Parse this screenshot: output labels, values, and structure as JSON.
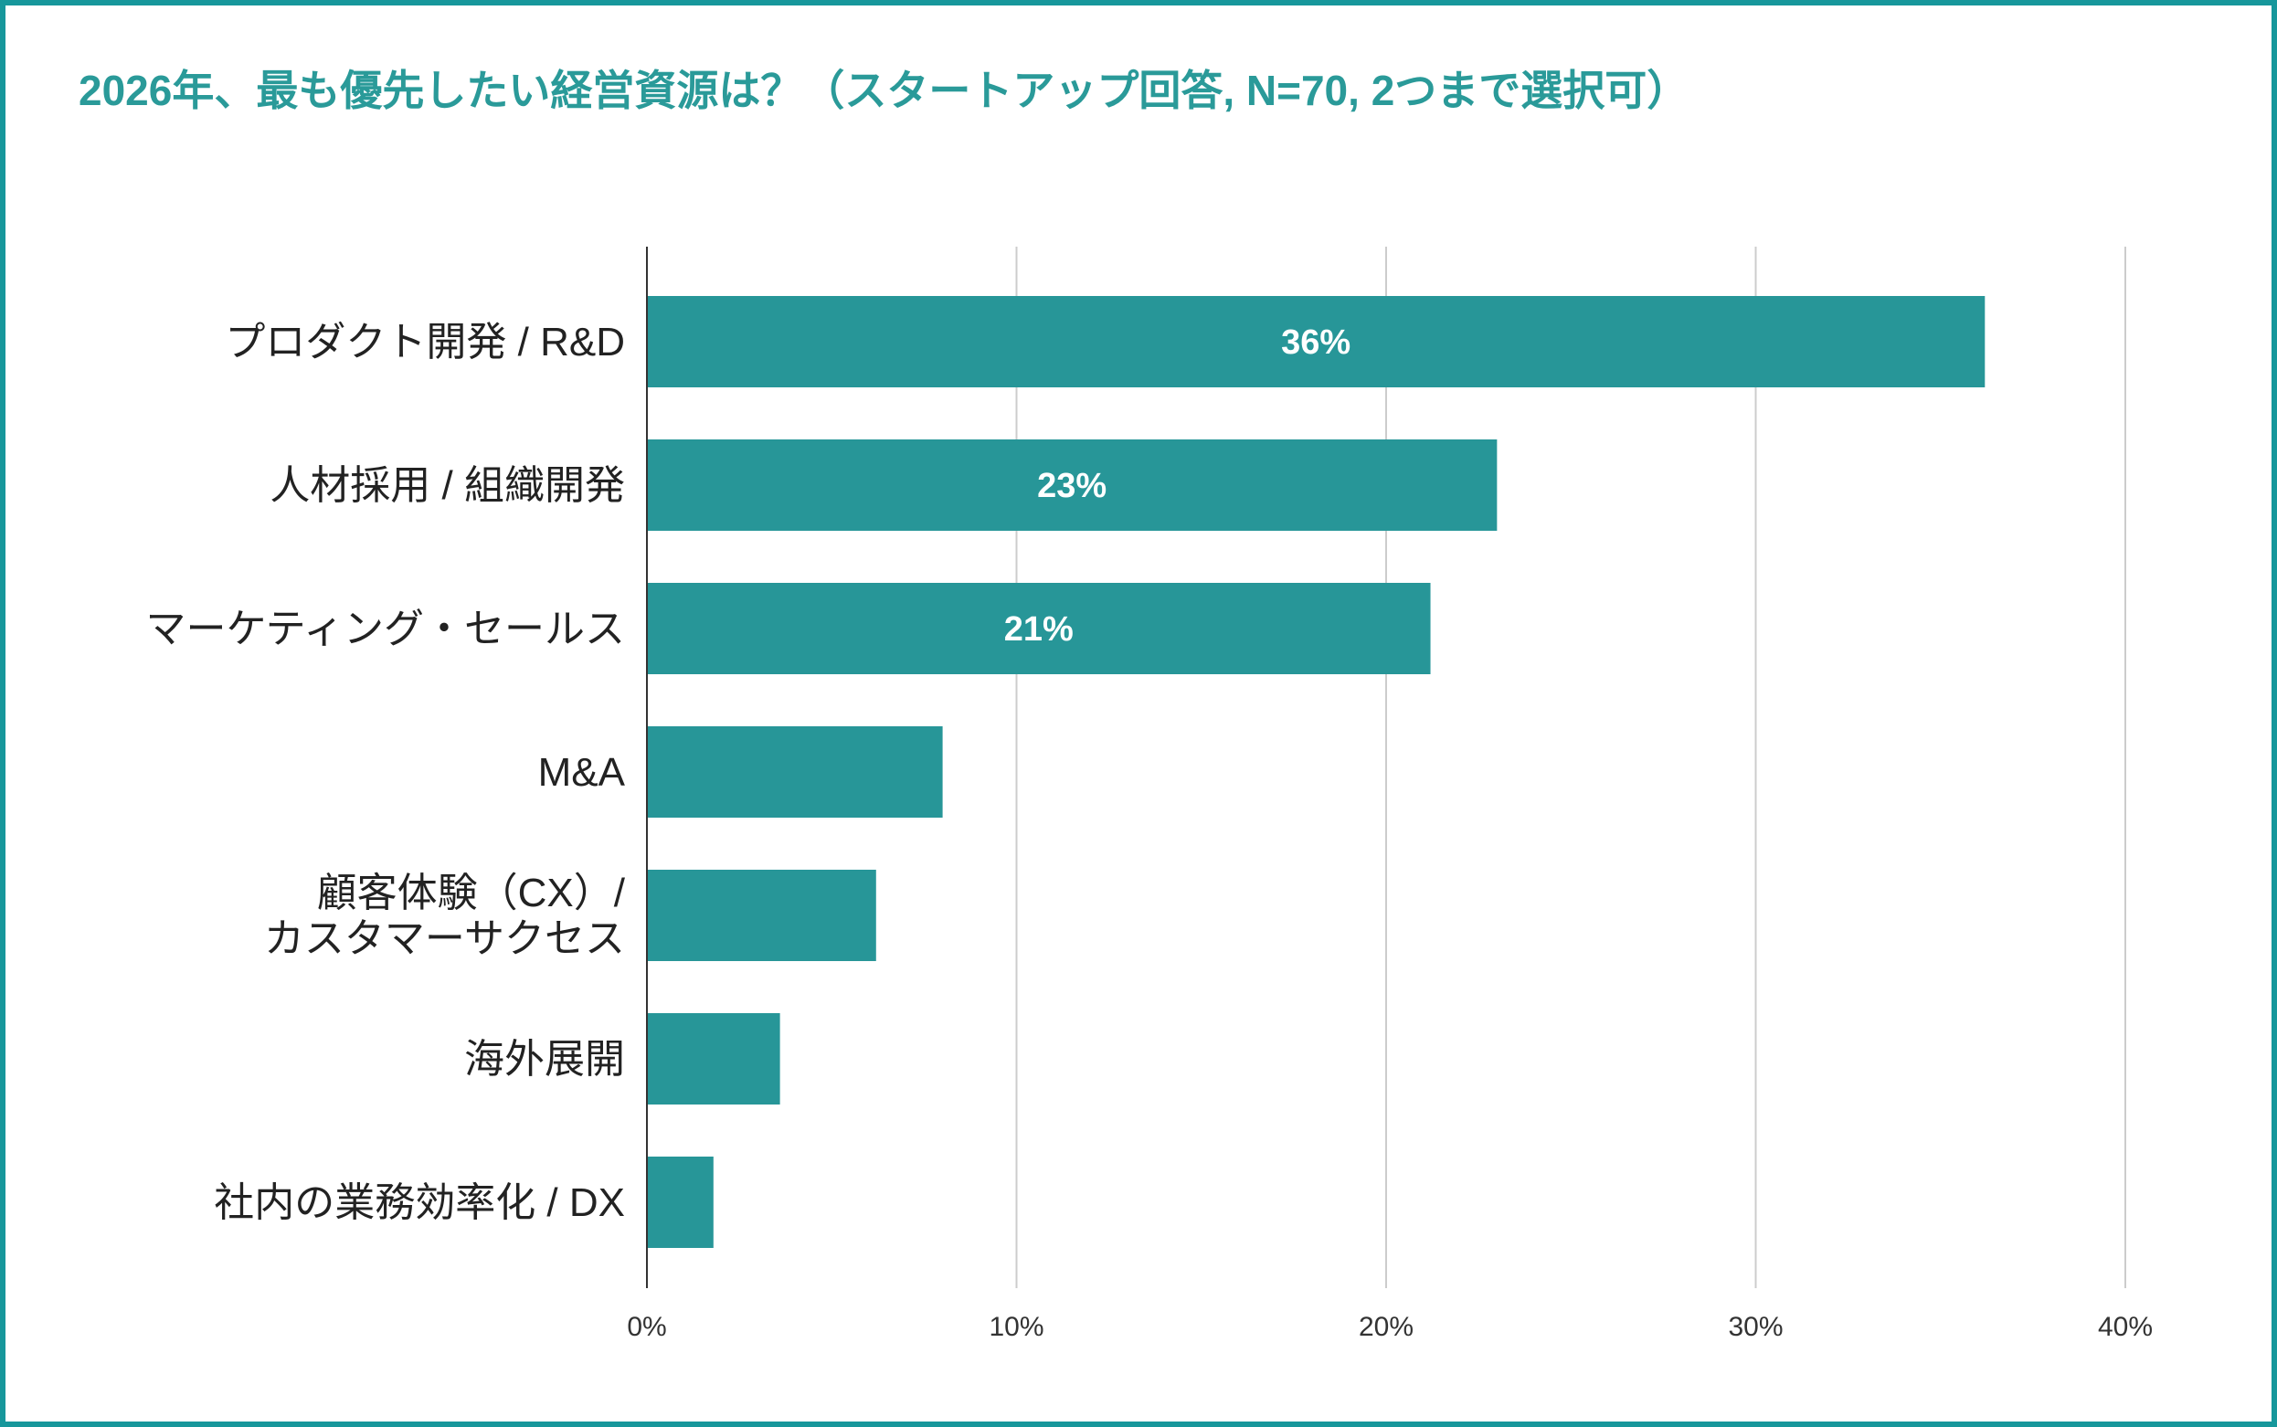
{
  "chart_data": {
    "type": "bar",
    "orientation": "horizontal",
    "title": "2026年、最も優先したい経営資源は？（スタートアップ回答, N=70, 2つまで選択可）",
    "categories": [
      "プロダクト開発 / R&D",
      "人材採用 / 組織開発",
      "マーケティング・セールス",
      "M&A",
      "顧客体験（CX）/\nカスタマーサクセス",
      "海外展開",
      "社内の業務効率化 / DX"
    ],
    "values": [
      36.2,
      23.0,
      21.2,
      8.0,
      6.2,
      3.6,
      1.8
    ],
    "data_labels": [
      "36%",
      "23%",
      "21%",
      "",
      "",
      "",
      ""
    ],
    "xlim": [
      0,
      40
    ],
    "xticks": [
      0,
      10,
      20,
      30,
      40
    ],
    "xtick_labels": [
      "0%",
      "10%",
      "20%",
      "30%",
      "40%"
    ],
    "xlabel": "",
    "ylabel": "",
    "grid": true,
    "legend": "none",
    "bar_color": "#279698",
    "title_color": "#2a9a99",
    "border_color": "#17979b"
  }
}
